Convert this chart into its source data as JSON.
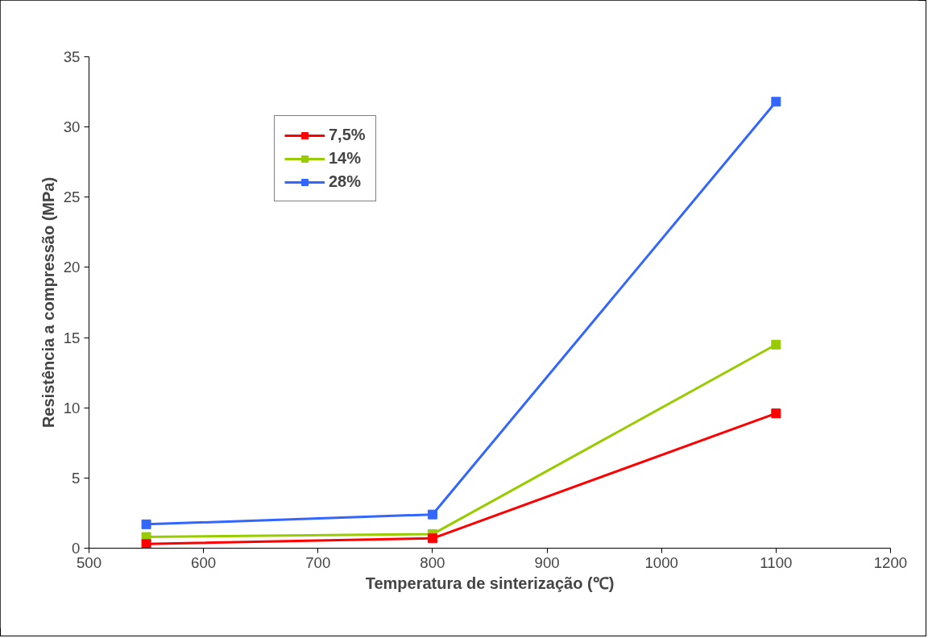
{
  "chart_data": {
    "type": "line",
    "xlabel": "Temperatura de sinterização (℃)",
    "ylabel": "Resistência a compressão (MPa)",
    "x": [
      550,
      800,
      1100
    ],
    "series": [
      {
        "name": "7,5%",
        "color": "#ff0000",
        "values": [
          0.3,
          0.7,
          9.6
        ]
      },
      {
        "name": "14%",
        "color": "#99cc00",
        "values": [
          0.8,
          1.0,
          14.5
        ]
      },
      {
        "name": "28%",
        "color": "#3366ff",
        "values": [
          1.7,
          2.4,
          31.8
        ]
      }
    ],
    "xlim": [
      500,
      1200
    ],
    "xticks": [
      500,
      600,
      700,
      800,
      900,
      1000,
      1100,
      1200
    ],
    "ylim": [
      0,
      35
    ],
    "yticks": [
      0,
      5,
      10,
      15,
      20,
      25,
      30,
      35
    ],
    "grid": false,
    "legend": "top left",
    "marker": "square",
    "line_style": "solid"
  }
}
